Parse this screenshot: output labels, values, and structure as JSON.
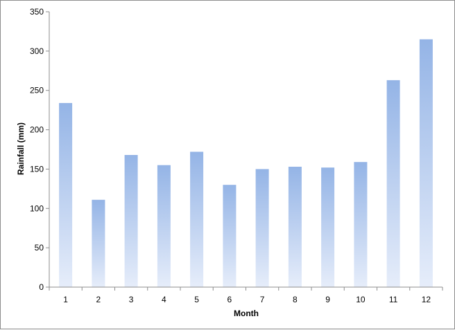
{
  "chart_data": {
    "type": "bar",
    "title": "",
    "xlabel": "Month",
    "ylabel": "Rainfall  (mm)",
    "categories": [
      "1",
      "2",
      "3",
      "4",
      "5",
      "6",
      "7",
      "8",
      "9",
      "10",
      "11",
      "12"
    ],
    "values": [
      234,
      111,
      168,
      155,
      172,
      130,
      150,
      153,
      152,
      159,
      263,
      315
    ],
    "ylim": [
      0,
      350
    ],
    "yticks": [
      0,
      50,
      100,
      150,
      200,
      250,
      300,
      350
    ],
    "grid": false,
    "legend": "none",
    "colors": {
      "bar_top": "#94b4e6",
      "bar_bottom": "#e6edfa",
      "axis": "#8c8c8c"
    }
  }
}
